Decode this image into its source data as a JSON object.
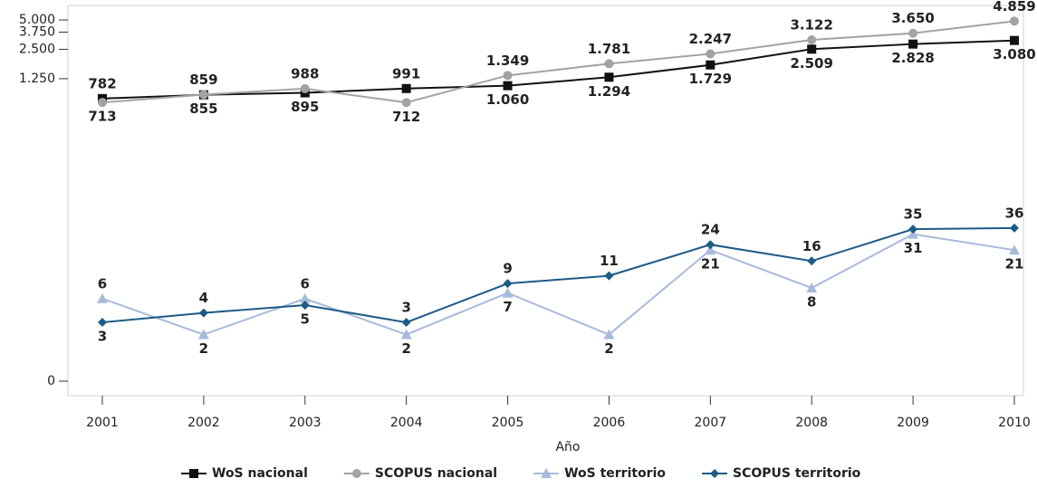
{
  "chart_data": {
    "type": "line",
    "x_label": "Año",
    "categories": [
      "2001",
      "2002",
      "2003",
      "2004",
      "2005",
      "2006",
      "2007",
      "2008",
      "2009",
      "2010"
    ],
    "yscale": "log",
    "ylim": [
      0,
      5000
    ],
    "yticks": [
      0,
      {
        "value": 1250,
        "label": "1.250"
      },
      {
        "value": 2500,
        "label": "2.500"
      },
      {
        "value": 3750,
        "label": "3.750"
      },
      {
        "value": 5000,
        "label": "5.000"
      }
    ],
    "legend": "bottom",
    "series": [
      {
        "name": "WoS nacional",
        "color": "#111111",
        "marker": "square",
        "values": [
          782,
          855,
          895,
          991,
          1060,
          1294,
          1729,
          2509,
          2828,
          3080
        ],
        "value_labels": [
          "782",
          "855",
          "895",
          "991",
          "1.060",
          "1.294",
          "1.729",
          "2.509",
          "2.828",
          "3.080"
        ]
      },
      {
        "name": "SCOPUS nacional",
        "color": "#a3a3a3",
        "marker": "circle",
        "values": [
          713,
          859,
          988,
          712,
          1349,
          1781,
          2247,
          3122,
          3650,
          4859
        ],
        "value_labels": [
          "713",
          "859",
          "988",
          "712",
          "1.349",
          "1.781",
          "2.247",
          "3.122",
          "3.650",
          "4.859"
        ]
      },
      {
        "name": "WoS territorio",
        "color": "#a8badb",
        "marker": "triangle",
        "values": [
          6,
          2,
          6,
          2,
          7,
          2,
          21,
          8,
          31,
          21
        ]
      },
      {
        "name": "SCOPUS territorio",
        "color": "#1d5a86",
        "marker": "diamond",
        "values": [
          3,
          4,
          5,
          3,
          9,
          11,
          24,
          16,
          35,
          36
        ]
      }
    ]
  }
}
